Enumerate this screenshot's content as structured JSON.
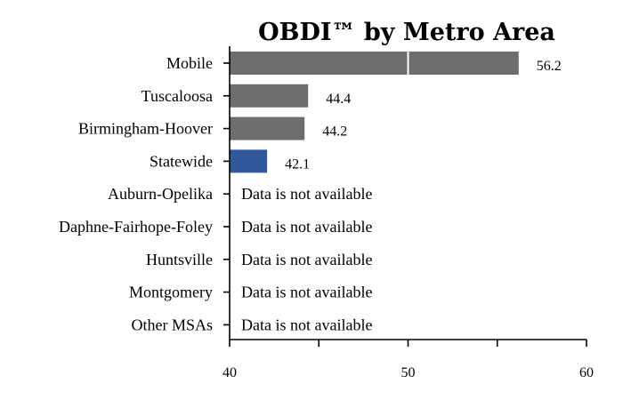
{
  "chart_data": {
    "type": "bar",
    "orientation": "horizontal",
    "title": "OBDI™ by Metro Area",
    "xlabel": "",
    "ylabel": "",
    "xlim": [
      40,
      60
    ],
    "xticks": [
      40,
      50,
      60
    ],
    "reference_line": 50,
    "categories": [
      "Mobile",
      "Tuscaloosa",
      "Birmingham-Hoover",
      "Statewide",
      "Auburn-Opelika",
      "Daphne-Fairhope-Foley",
      "Huntsville",
      "Montgomery",
      "Other MSAs"
    ],
    "values": [
      56.2,
      44.4,
      44.2,
      42.1,
      null,
      null,
      null,
      null,
      null
    ],
    "value_labels": [
      "56.2",
      "44.4",
      "44.2",
      "42.1",
      "",
      "",
      "",
      "",
      ""
    ],
    "missing_label": "Data is not available",
    "highlight_category": "Statewide",
    "grid": false,
    "colors": {
      "default": "#6d6f6f",
      "highlight": "#31579c",
      "reference": "#ffffff"
    }
  }
}
